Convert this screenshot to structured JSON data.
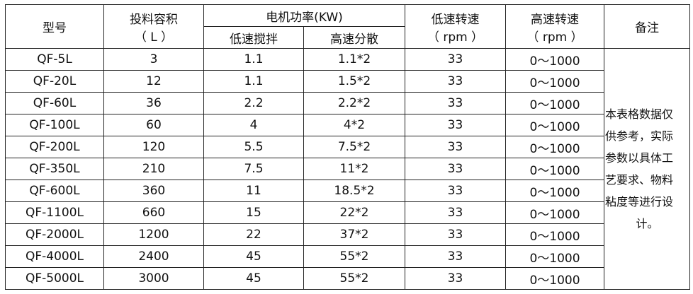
{
  "headers": {
    "model": "型号",
    "volume": [
      "投料容积",
      "（ L ）"
    ],
    "power": "电机功率(KW)",
    "power_low": "低速搅拌",
    "power_high": "高速分散",
    "low_speed": [
      "低速转速",
      "（ rpm ）"
    ],
    "high_speed": [
      "高速转速",
      "（ rpm ）"
    ],
    "remark": "备注"
  },
  "rows": [
    [
      "QF-5L",
      "3",
      "1.1",
      "1.1*2",
      "33",
      "0～1000"
    ],
    [
      "QF-20L",
      "12",
      "1.1",
      "1.5*2",
      "33",
      "0～1000"
    ],
    [
      "QF-60L",
      "36",
      "2.2",
      "2.2*2",
      "33",
      "0～1000"
    ],
    [
      "QF-100L",
      "60",
      "4",
      "4*2",
      "33",
      "0～1000"
    ],
    [
      "QF-200L",
      "120",
      "5.5",
      "7.5*2",
      "33",
      "0～1000"
    ],
    [
      "QF-350L",
      "210",
      "7.5",
      "11*2",
      "33",
      "0～1000"
    ],
    [
      "QF-600L",
      "360",
      "11",
      "18.5*2",
      "33",
      "0～1000"
    ],
    [
      "QF-1100L",
      "660",
      "15",
      "22*2",
      "33",
      "0～1000"
    ],
    [
      "QF-2000L",
      "1200",
      "22",
      "37*2",
      "33",
      "0～1000"
    ],
    [
      "QF-4000L",
      "2400",
      "45",
      "55*2",
      "33",
      "0～1000"
    ],
    [
      "QF-5000L",
      "3000",
      "45",
      "55*2",
      "33",
      "0～1000"
    ]
  ],
  "remark_lines": [
    "本表格数据仅",
    "供参考，实际",
    "参数以具体工",
    "艺要求、物料",
    "粘度等进行设",
    "计。"
  ]
}
